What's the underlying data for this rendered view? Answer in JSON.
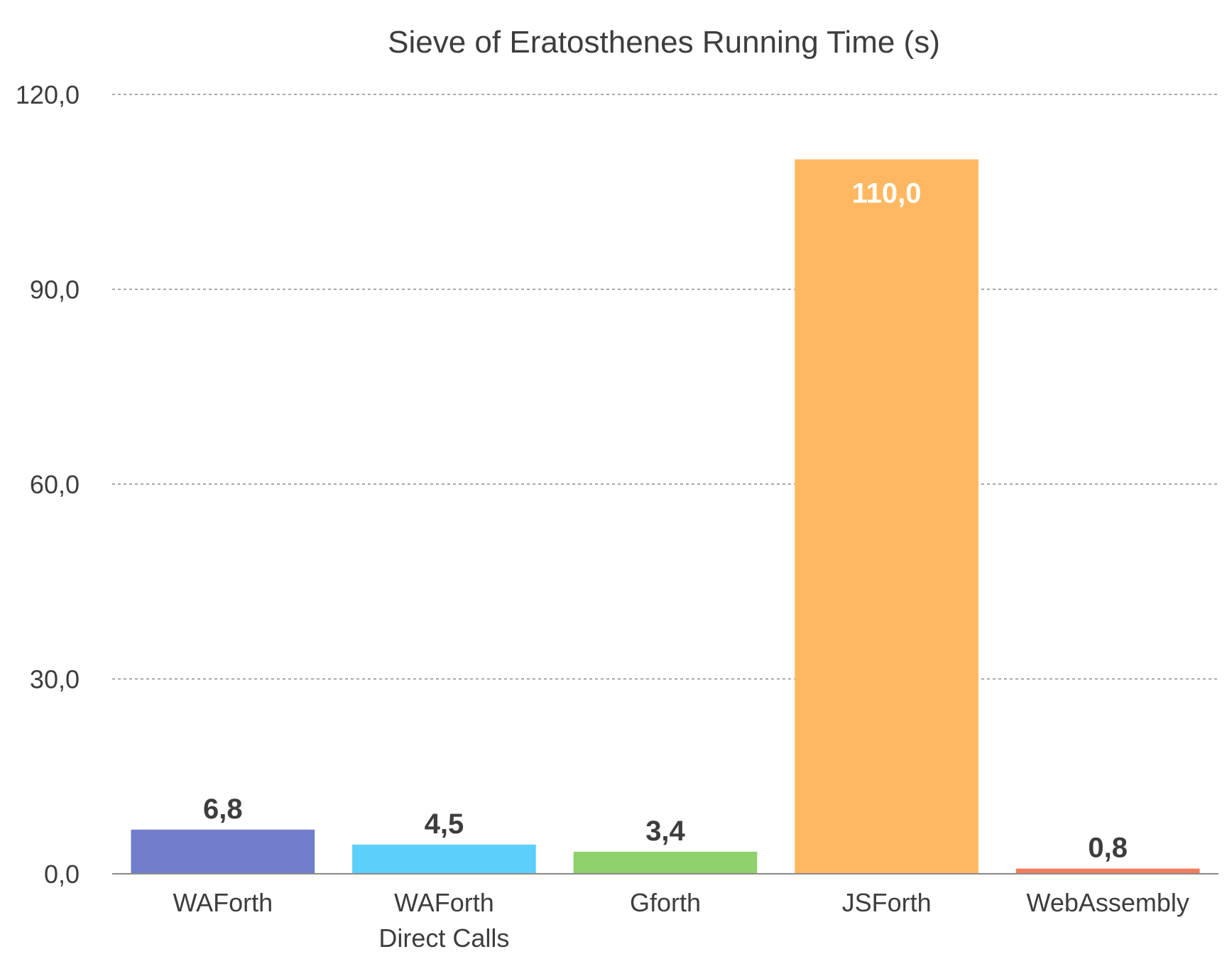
{
  "chart_data": {
    "type": "bar",
    "title": "Sieve of Eratosthenes Running Time (s)",
    "xlabel": "",
    "ylabel": "",
    "categories": [
      [
        "WAForth"
      ],
      [
        "WAForth",
        "Direct Calls"
      ],
      [
        "Gforth"
      ],
      [
        "JSForth"
      ],
      [
        "WebAssembly"
      ]
    ],
    "values": [
      6.8,
      4.5,
      3.4,
      110.0,
      0.8
    ],
    "value_labels": [
      "6,8",
      "4,5",
      "3,4",
      "110,0",
      "0,8"
    ],
    "colors": [
      "#6f7dcb",
      "#5ccffb",
      "#8fd16c",
      "#ffb861",
      "#f17c5e"
    ],
    "ylim": [
      0,
      120
    ],
    "yticks": [
      0,
      30,
      60,
      90,
      120
    ],
    "ytick_labels": [
      "0,0",
      "30,0",
      "60,0",
      "90,0",
      "120,0"
    ],
    "grid": true,
    "legend": "none"
  }
}
